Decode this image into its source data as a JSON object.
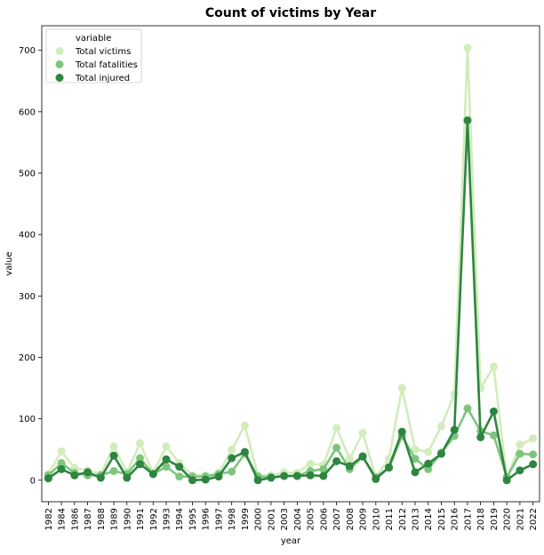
{
  "chart_data": {
    "type": "line",
    "title": "Count of victims by Year",
    "xlabel": "year",
    "ylabel": "value",
    "ylim": [
      -35,
      740
    ],
    "yticks": [
      0,
      100,
      200,
      300,
      400,
      500,
      600,
      700
    ],
    "grid": false,
    "markers": "circle",
    "legend": {
      "title": "variable",
      "placement": "top-left"
    },
    "categories": [
      "1982",
      "1984",
      "1986",
      "1987",
      "1988",
      "1989",
      "1990",
      "1991",
      "1992",
      "1993",
      "1994",
      "1995",
      "1996",
      "1997",
      "1998",
      "1999",
      "2000",
      "2001",
      "2003",
      "2004",
      "2005",
      "2006",
      "2007",
      "2008",
      "2009",
      "2010",
      "2011",
      "2012",
      "2013",
      "2014",
      "2015",
      "2016",
      "2017",
      "2018",
      "2019",
      "2020",
      "2021",
      "2022"
    ],
    "series": [
      {
        "name": "Total victims",
        "color": "#d2ecbc",
        "values": [
          10,
          47,
          20,
          16,
          10,
          55,
          13,
          60,
          12,
          55,
          28,
          8,
          8,
          12,
          50,
          89,
          8,
          8,
          13,
          12,
          27,
          25,
          85,
          35,
          77,
          5,
          35,
          150,
          50,
          46,
          88,
          140,
          704,
          150,
          185,
          3,
          58,
          68
        ]
      },
      {
        "name": "Total fatalities",
        "color": "#7dc57d",
        "values": [
          8,
          28,
          12,
          8,
          8,
          15,
          10,
          36,
          10,
          22,
          6,
          6,
          6,
          10,
          14,
          43,
          6,
          5,
          7,
          7,
          15,
          18,
          53,
          18,
          38,
          5,
          20,
          72,
          35,
          18,
          45,
          72,
          117,
          80,
          73,
          5,
          43,
          42
        ]
      },
      {
        "name": "Total injured",
        "color": "#2e8540",
        "values": [
          3,
          18,
          8,
          13,
          4,
          40,
          4,
          26,
          10,
          34,
          22,
          0,
          1,
          6,
          36,
          46,
          0,
          4,
          7,
          7,
          8,
          7,
          31,
          23,
          39,
          2,
          21,
          79,
          13,
          27,
          43,
          82,
          586,
          70,
          112,
          0,
          16,
          26
        ]
      }
    ]
  }
}
